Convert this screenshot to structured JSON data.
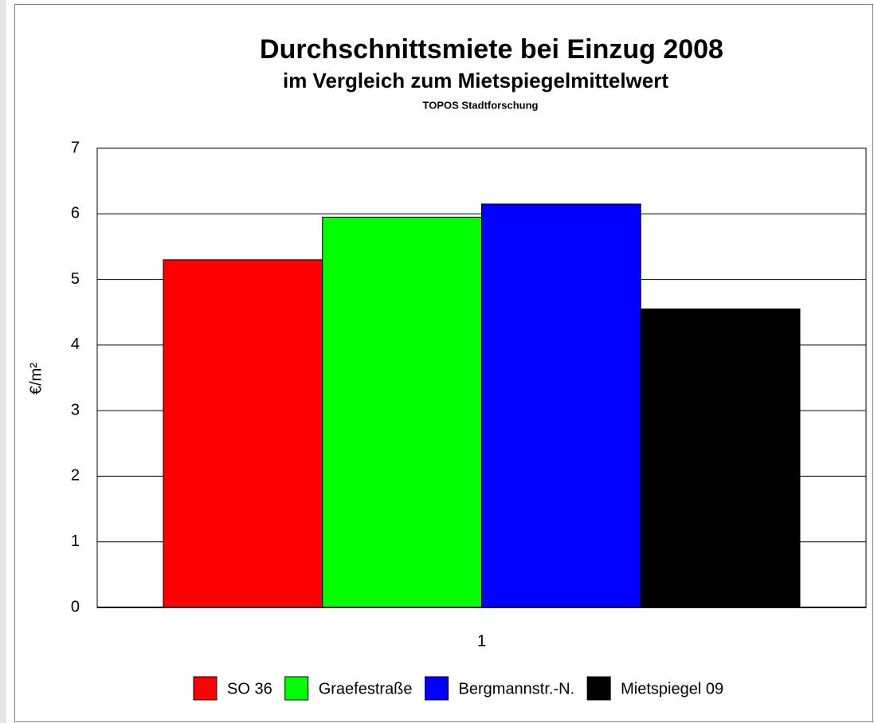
{
  "chart_data": {
    "type": "bar",
    "title": "Durchschnittsmiete bei Einzug 2008",
    "subtitle": "im Vergleich zum Mietspiegelmittelwert",
    "source": "TOPOS Stadtforschung",
    "y_label": "€/m²",
    "categories": [
      "1"
    ],
    "series": [
      {
        "name": "SO 36",
        "color": "#ff0000",
        "values": [
          5.3
        ]
      },
      {
        "name": "Graefestraße",
        "color": "#00ff00",
        "values": [
          5.95
        ]
      },
      {
        "name": "Bergmannstr.-N.",
        "color": "#0000ff",
        "values": [
          6.15
        ]
      },
      {
        "name": "Mietspiegel 09",
        "color": "#000000",
        "values": [
          4.55
        ]
      }
    ],
    "ylim": [
      0,
      7
    ],
    "yticks": [
      0,
      1,
      2,
      3,
      4,
      5,
      6,
      7
    ],
    "grid": true,
    "legend": "bottom"
  }
}
